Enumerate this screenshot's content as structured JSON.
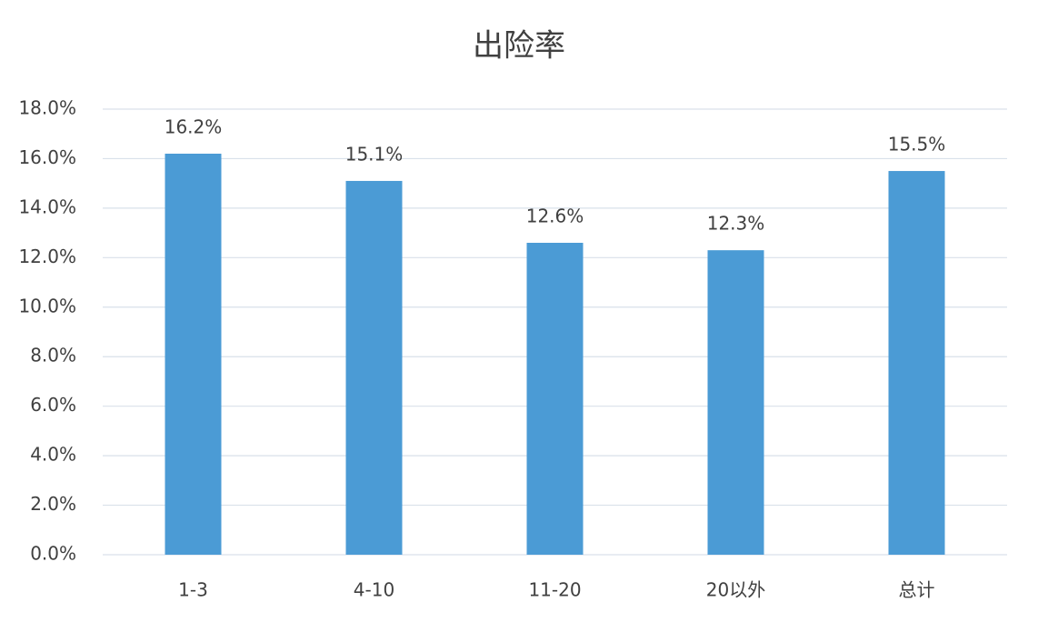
{
  "chart_data": {
    "type": "bar",
    "title": "出险率",
    "categories": [
      "1-3",
      "4-10",
      "11-20",
      "20以外",
      "总计"
    ],
    "values": [
      16.2,
      15.1,
      12.6,
      12.3,
      15.5
    ],
    "value_labels": [
      "16.2%",
      "15.1%",
      "12.6%",
      "12.3%",
      "15.5%"
    ],
    "color": "#4b9bd5",
    "ylim": [
      0,
      18
    ],
    "yticks": [
      {
        "value": 0,
        "label": "0.0%"
      },
      {
        "value": 2,
        "label": "2.0%"
      },
      {
        "value": 4,
        "label": "4.0%"
      },
      {
        "value": 6,
        "label": "6.0%"
      },
      {
        "value": 8,
        "label": "8.0%"
      },
      {
        "value": 10,
        "label": "10.0%"
      },
      {
        "value": 12,
        "label": "12.0%"
      },
      {
        "value": 14,
        "label": "14.0%"
      },
      {
        "value": 16,
        "label": "16.0%"
      },
      {
        "value": 18,
        "label": "18.0%"
      }
    ],
    "grid": true
  }
}
